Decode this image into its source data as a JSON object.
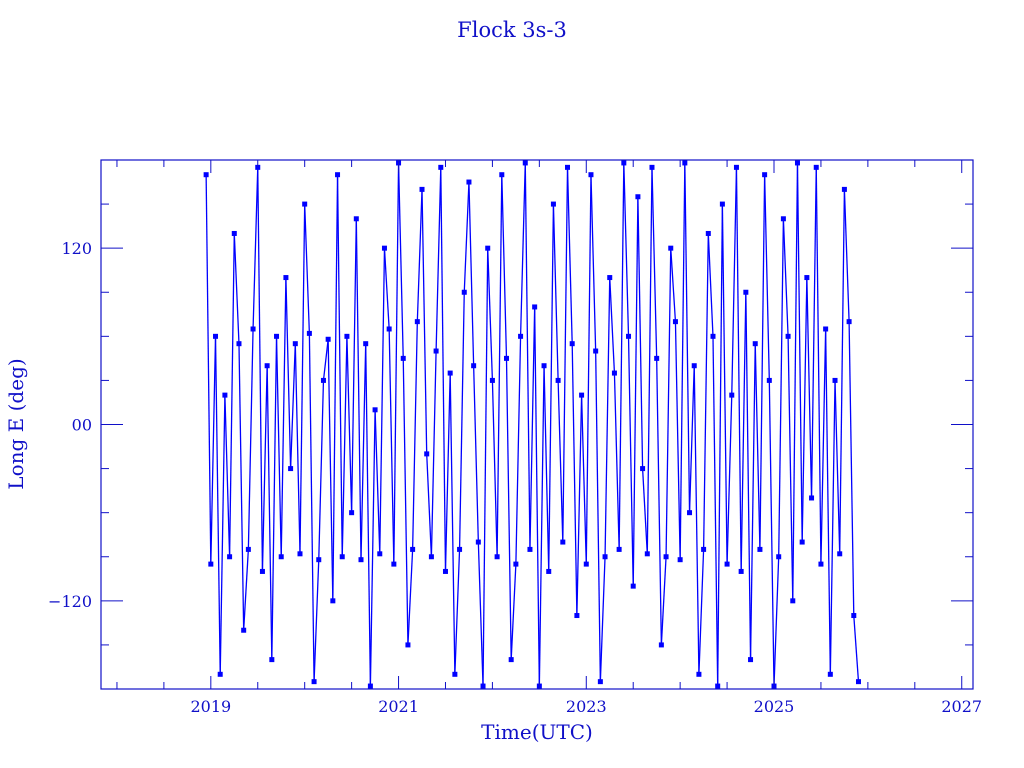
{
  "chart_data": {
    "type": "line",
    "title": "Flock 3s-3",
    "xlabel": "Time(UTC)",
    "ylabel": "Long E (deg)",
    "xlim": [
      2017.83,
      2027.12
    ],
    "ylim": [
      -180,
      180
    ],
    "xticks": [
      "2019",
      "2021",
      "2023",
      "2025",
      "2027"
    ],
    "xtick_values": [
      2019,
      2021,
      2023,
      2025,
      2027
    ],
    "yticks": [
      "120",
      "00",
      "−120"
    ],
    "ytick_values": [
      120,
      0,
      -120
    ],
    "x_minor_step": 0.5,
    "y_minor_step": 30,
    "grid": false,
    "markers": "square",
    "colors": {
      "series": "#0000ff",
      "axes": "#1010c8"
    },
    "series": [
      {
        "x_start": 2018.95,
        "x_step": 0.05,
        "values": [
          170,
          -95,
          60,
          -170,
          20,
          -90,
          130,
          55,
          -140,
          -85,
          65,
          175,
          -100,
          40,
          -160,
          60,
          -90,
          100,
          -30,
          55,
          -88,
          150,
          62,
          -175,
          -92,
          30,
          58,
          -120,
          170,
          -90,
          60,
          -60,
          140,
          -92,
          55,
          -178,
          10,
          -88,
          120,
          65,
          -95,
          178,
          45,
          -150,
          -85,
          70,
          160,
          -20,
          -90,
          50,
          175,
          -100,
          35,
          -170,
          -85,
          90,
          165,
          40,
          -80,
          -178,
          120,
          30,
          -90,
          170,
          45,
          -160,
          -95,
          60,
          178,
          -85,
          80,
          -178,
          40,
          -100,
          150,
          30,
          -80,
          175,
          55,
          -130,
          20,
          -95,
          170,
          50,
          -175,
          -90,
          100,
          35,
          -85,
          178,
          60,
          -110,
          155,
          -30,
          -88,
          175,
          45,
          -150,
          -90,
          120,
          70,
          -92,
          178,
          -60,
          40,
          -170,
          -85,
          130,
          60,
          -178,
          150,
          -95,
          20,
          175,
          -100,
          90,
          -160,
          55,
          -85,
          170,
          30,
          -178,
          -90,
          140,
          60,
          -120,
          178,
          -80,
          100,
          -50,
          175,
          -95,
          65,
          -170,
          30,
          -88,
          160,
          70,
          -130,
          -175
        ]
      }
    ]
  }
}
